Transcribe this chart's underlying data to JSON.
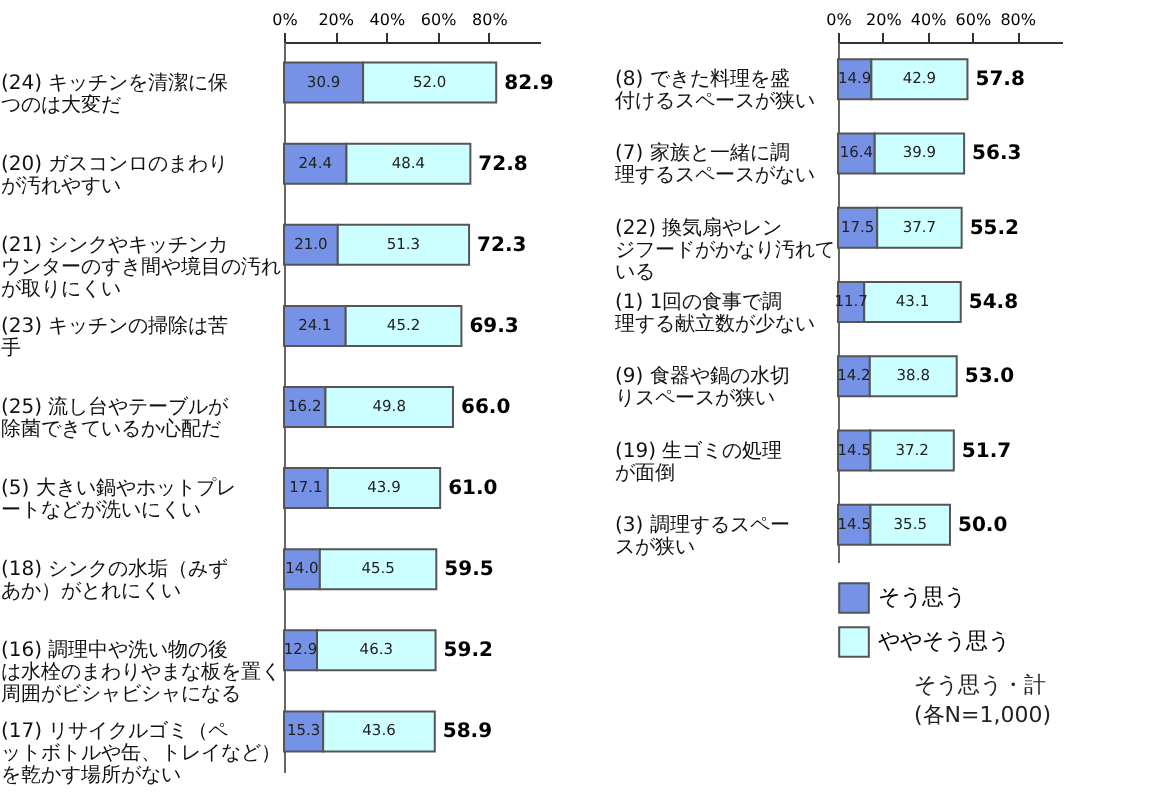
{
  "chart_data": [
    {
      "type": "bar",
      "orientation": "horizontal",
      "stacked": true,
      "grid": false,
      "legend": false,
      "categories": [
        "(24) キッチンを清潔に保つのは大変だ",
        "(20) ガスコンロのまわりが汚れやすい",
        "(21) シンクやキッチンカウンターのすき間や境目の汚れが取りにくい",
        "(23) キッチンの掃除は苦手",
        "(25) 流し台やテーブルが除菌できているか心配だ",
        "(5) 大きい鍋やホットプレートなどが洗いにくい",
        "(18) シンクの水垢（みずあか）がとれにくい",
        "(16) 調理中や洗い物の後は水栓のまわりやまな板を置く周囲がビシャビシャになる",
        "(17) リサイクルゴミ（ペットボトルや缶、トレイなど）を乾かす場所がない"
      ],
      "series": [
        {
          "color": "#7592e6",
          "values": [
            30.9,
            24.4,
            21.0,
            24.1,
            16.2,
            17.1,
            14.0,
            12.9,
            15.3
          ],
          "value_labels": [
            "30.9",
            "24.4",
            "21.0",
            "24.1",
            "16.2",
            "17.1",
            "14.0",
            "12.9",
            "15.3"
          ]
        },
        {
          "color": "#ccffff",
          "values": [
            52.0,
            48.4,
            51.3,
            45.2,
            49.8,
            43.9,
            45.5,
            46.3,
            43.6
          ],
          "value_labels": [
            "52.0",
            "48.4",
            "51.3",
            "45.2",
            "49.8",
            "43.9",
            "45.5",
            "46.3",
            "43.6"
          ]
        }
      ],
      "totals": [
        "82.9",
        "72.8",
        "72.3",
        "69.3",
        "66.0",
        "61.0",
        "59.5",
        "59.2",
        "58.9"
      ],
      "xlim": [
        0,
        100
      ],
      "xticks": [
        {
          "value": 0,
          "label": "0%"
        },
        {
          "value": 20,
          "label": "20%"
        },
        {
          "value": 40,
          "label": "40%"
        },
        {
          "value": 60,
          "label": "60%"
        },
        {
          "value": 80,
          "label": "80%"
        }
      ]
    },
    {
      "type": "bar",
      "orientation": "horizontal",
      "stacked": true,
      "grid": false,
      "legend": "bottom",
      "categories": [
        "(8) できた料理を盛付けるスペースが狭い",
        "(7) 家族と一緒に調理するスペースがない",
        "(22) 換気扇やレンジフードがかなり汚れている",
        "(1) 1回の食事で調理する献立数が少ない",
        "(9) 食器や鍋の水切りスペースが狭い",
        "(19) 生ゴミの処理が面倒",
        "(3) 調理するスペースが狭い"
      ],
      "series": [
        {
          "name": "そう思う",
          "color": "#7592e6",
          "values": [
            14.9,
            16.4,
            17.5,
            11.7,
            14.2,
            14.5,
            14.5
          ],
          "value_labels": [
            "14.9",
            "16.4",
            "17.5",
            "11.7",
            "14.2",
            "14.5",
            "14.5"
          ]
        },
        {
          "name": "ややそう思う",
          "color": "#ccffff",
          "values": [
            42.9,
            39.9,
            37.7,
            43.1,
            38.8,
            37.2,
            35.5
          ],
          "value_labels": [
            "42.9",
            "39.9",
            "37.7",
            "43.1",
            "38.8",
            "37.2",
            "35.5"
          ]
        }
      ],
      "totals": [
        "57.8",
        "56.3",
        "55.2",
        "54.8",
        "53.0",
        "51.7",
        "50.0"
      ],
      "xlim": [
        0,
        100
      ],
      "xticks": [
        {
          "value": 0,
          "label": "0%"
        },
        {
          "value": 20,
          "label": "20%"
        },
        {
          "value": 40,
          "label": "40%"
        },
        {
          "value": 60,
          "label": "60%"
        },
        {
          "value": 80,
          "label": "80%"
        }
      ],
      "annotations": [
        "そう思う・計",
        "(各N=1,000)"
      ]
    }
  ]
}
